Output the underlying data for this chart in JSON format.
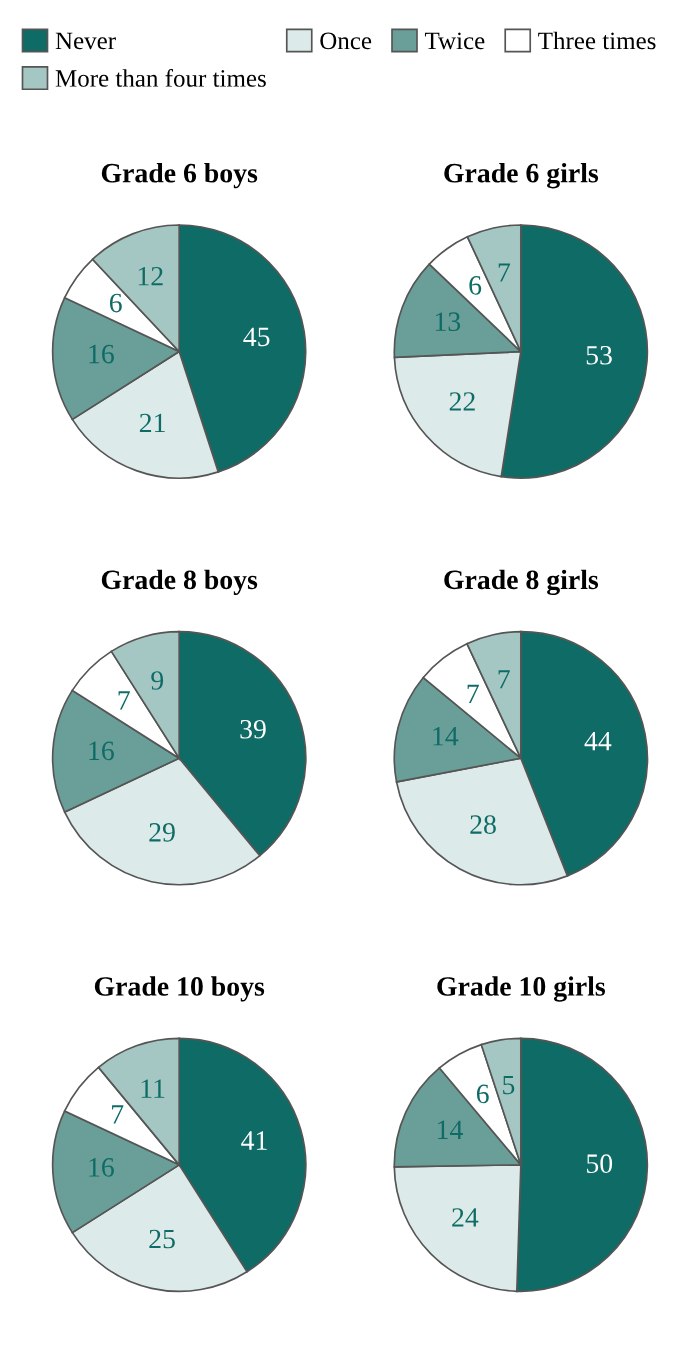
{
  "chart_data": [
    {
      "type": "pie",
      "title": "Grade 6 boys",
      "categories": [
        "Never",
        "Once",
        "Twice",
        "Three times",
        "More than four times"
      ],
      "values": [
        45,
        21,
        16,
        6,
        12
      ],
      "colors": [
        "#0f6b66",
        "#dcebea",
        "#6a9e98",
        "#ffffff",
        "#a5c7c3"
      ],
      "data_labels": true,
      "legend": "top"
    },
    {
      "type": "pie",
      "title": "Grade 6 girls",
      "categories": [
        null,
        null,
        null,
        null,
        null
      ],
      "values": [
        53,
        22,
        13,
        6,
        7
      ],
      "colors": [
        "#0f6b66",
        "#dcebea",
        "#6a9e98",
        "#ffffff",
        "#a5c7c3"
      ],
      "data_labels": true
    },
    {
      "type": "pie",
      "title": "Grade 8 boys",
      "categories": [
        null,
        null,
        null,
        null,
        null
      ],
      "values": [
        39,
        29,
        16,
        7,
        9
      ],
      "colors": [
        "#0f6b66",
        "#dcebea",
        "#6a9e98",
        "#ffffff",
        "#a5c7c3"
      ],
      "data_labels": true
    },
    {
      "type": "pie",
      "title": "Grade 8 girls",
      "categories": [
        null,
        null,
        null,
        null,
        null
      ],
      "values": [
        44,
        28,
        14,
        7,
        7
      ],
      "colors": [
        "#0f6b66",
        "#dcebea",
        "#6a9e98",
        "#ffffff",
        "#a5c7c3"
      ],
      "data_labels": true
    },
    {
      "type": "pie",
      "title": "Grade 10 boys",
      "categories": [
        null,
        null,
        null,
        null,
        null
      ],
      "values": [
        41,
        25,
        16,
        7,
        11
      ],
      "colors": [
        "#0f6b66",
        "#dcebea",
        "#6a9e98",
        "#ffffff",
        "#a5c7c3"
      ],
      "data_labels": true
    },
    {
      "type": "pie",
      "title": "Grade 10 girls",
      "categories": [
        null,
        null,
        null,
        null,
        null
      ],
      "values": [
        50,
        24,
        14,
        6,
        5
      ],
      "colors": [
        "#0f6b66",
        "#dcebea",
        "#6a9e98",
        "#ffffff",
        "#a5c7c3"
      ],
      "data_labels": true
    }
  ]
}
